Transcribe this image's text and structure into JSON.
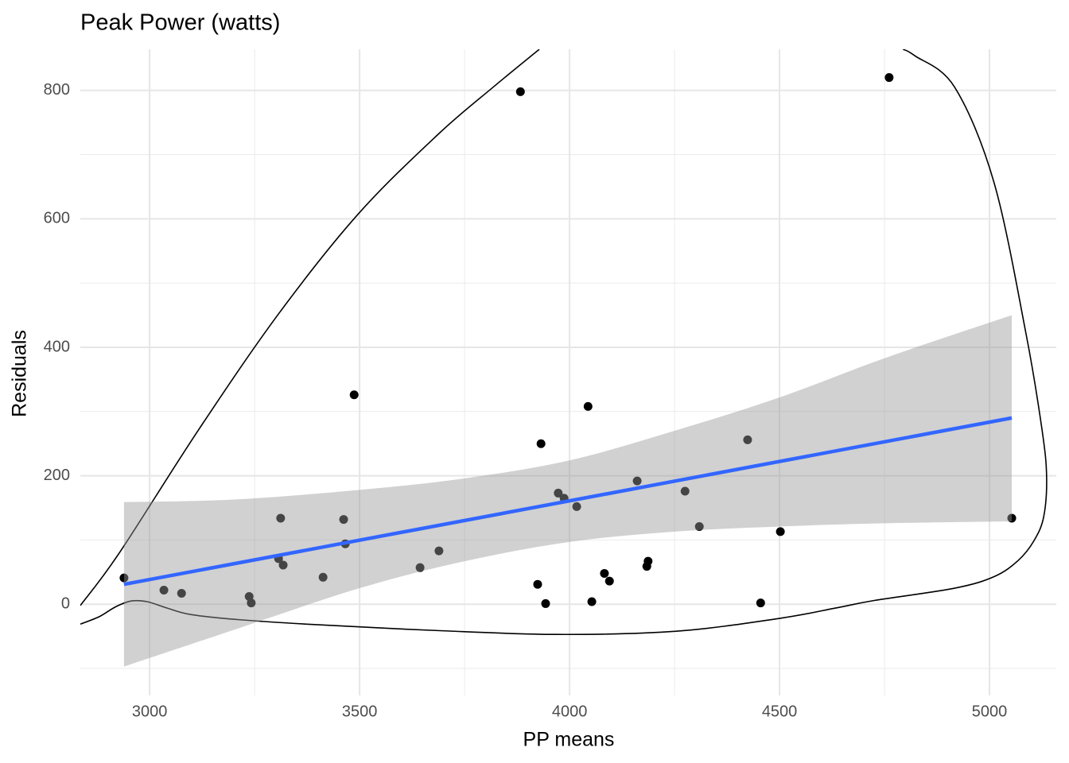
{
  "chart_data": {
    "type": "scatter",
    "title": "Peak Power (watts)",
    "x_label": "PP means",
    "y_label": "Residuals",
    "xlim": [
      2835,
      5159
    ],
    "ylim": [
      -142,
      864
    ],
    "xticks": [
      3000,
      3500,
      4000,
      4500,
      5000
    ],
    "yticks": [
      0,
      200,
      400,
      600,
      800
    ],
    "x_minor_grid": [
      3250,
      3750,
      4250,
      4750
    ],
    "y_minor_grid": [
      -100,
      100,
      300,
      500,
      700
    ],
    "grid": true,
    "points": {
      "color": "#000000",
      "x": [
        2939,
        3034,
        3076,
        3237,
        3242,
        3307,
        3312,
        3318,
        3413,
        3462,
        3466,
        3487,
        3644,
        3689,
        3883,
        3924,
        3932,
        3943,
        3973,
        3987,
        4017,
        4044,
        4053,
        4083,
        4095,
        4161,
        4184,
        4187,
        4275,
        4309,
        4424,
        4455,
        4502,
        4761,
        5053
      ],
      "values": [
        41,
        22,
        17,
        12,
        2,
        71,
        134,
        61,
        42,
        132,
        94,
        326,
        57,
        83,
        798,
        31,
        250,
        1,
        173,
        165,
        152,
        308,
        4,
        48,
        36,
        192,
        59,
        67,
        176,
        121,
        256,
        2,
        113,
        820,
        134
      ]
    },
    "band": {
      "color": "#999999",
      "x": [
        2939,
        3200,
        3500,
        3750,
        4000,
        4250,
        4500,
        4750,
        5053
      ],
      "lower": [
        -97,
        -40,
        25,
        67,
        97,
        113,
        121,
        126,
        129
      ],
      "upper": [
        159,
        163,
        178,
        196,
        224,
        270,
        322,
        383,
        450
      ]
    },
    "fit": {
      "color": "#3366ff",
      "x": [
        2939,
        5053
      ],
      "values": [
        31,
        290
      ]
    },
    "contour": {
      "color": "#000000",
      "x": [
        2835,
        2928,
        3117,
        3307,
        3496,
        3686,
        3818,
        3928,
        null,
        4794,
        4822,
        4917,
        5011,
        5087,
        5125,
        5136,
        5129,
        5106,
        5068,
        5011,
        4917,
        4727,
        4633,
        4500,
        4254,
        3970,
        3686,
        3402,
        3212,
        3098,
        3042,
        2994,
        2956,
        2919,
        2881,
        2835
      ],
      "values": [
        -2,
        80,
        272,
        452,
        607,
        731,
        805,
        864,
        null,
        864,
        854,
        805,
        656,
        421,
        272,
        198,
        136,
        99,
        68,
        43,
        25,
        6,
        -6,
        -22,
        -42,
        -47,
        -41,
        -32,
        -24,
        -16,
        -6,
        4,
        5,
        -4,
        -19,
        -31
      ]
    }
  }
}
